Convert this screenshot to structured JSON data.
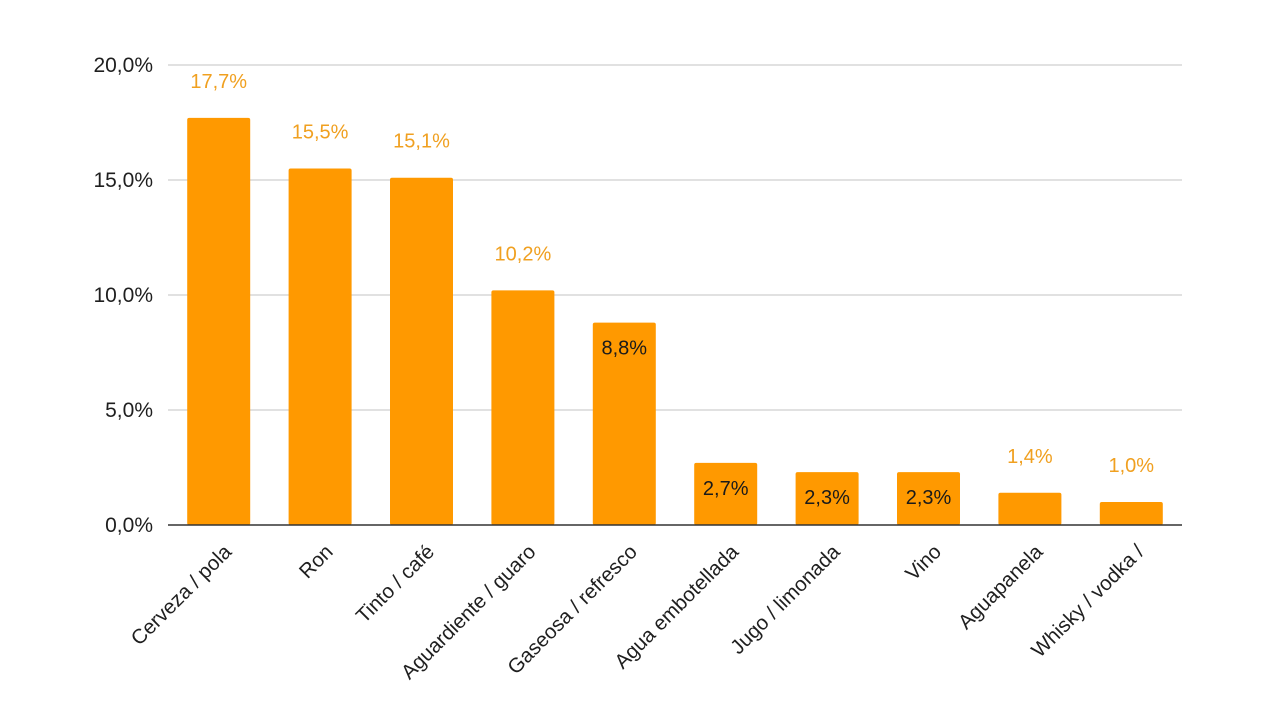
{
  "colors": {
    "bar": "#ff9900",
    "label_outside": "#f0a020",
    "label_inside": "#1a1a1a",
    "grid": "#cfcfcf",
    "axis": "#333333",
    "text": "#1f1f1f"
  },
  "chart_data": {
    "type": "bar",
    "title": "",
    "xlabel": "",
    "ylabel": "",
    "ylim": [
      0,
      20
    ],
    "y_ticks": [
      {
        "value": 0,
        "label": "0,0%"
      },
      {
        "value": 5,
        "label": "5,0%"
      },
      {
        "value": 10,
        "label": "10,0%"
      },
      {
        "value": 15,
        "label": "15,0%"
      },
      {
        "value": 20,
        "label": "20,0%"
      }
    ],
    "grid": true,
    "legend": "none",
    "categories": [
      "Cerveza / pola",
      "Ron",
      "Tinto / café",
      "Aguardiente / guaro",
      "Gaseosa / refresco",
      "Agua embotellada",
      "Jugo / limonada",
      "Vino",
      "Aguapanela",
      "Whisky / vodka /"
    ],
    "values": [
      17.7,
      15.5,
      15.1,
      10.2,
      8.8,
      2.7,
      2.3,
      2.3,
      1.4,
      1.0
    ],
    "data_labels": [
      "17,7%",
      "15,5%",
      "15,1%",
      "10,2%",
      "8,8%",
      "2,7%",
      "2,3%",
      "2,3%",
      "1,4%",
      "1,0%"
    ],
    "label_position": [
      "outside",
      "outside",
      "outside",
      "outside",
      "inside",
      "inside",
      "inside",
      "inside",
      "outside",
      "outside"
    ]
  }
}
